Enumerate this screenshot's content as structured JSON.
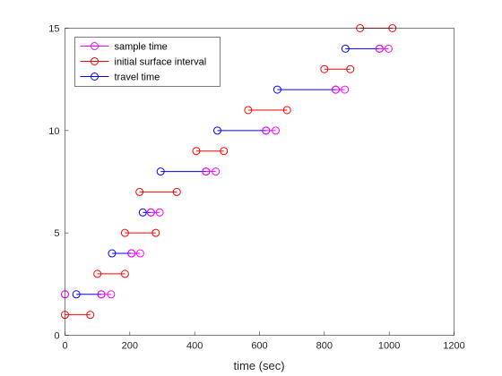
{
  "chart_data": {
    "type": "line",
    "title": "",
    "xlabel": "time (sec)",
    "ylabel": "",
    "xlim": [
      0,
      1200
    ],
    "ylim": [
      0,
      15
    ],
    "xticks": [
      0,
      200,
      400,
      600,
      800,
      1000,
      1200
    ],
    "yticks": [
      0,
      5,
      10,
      15
    ],
    "grid": false,
    "legend_position": "top-left",
    "colors": {
      "sample time": "#ff00ff",
      "initial surface interval": "#ff0000",
      "travel time": "#0000ff"
    },
    "legend": [
      "sample time",
      "initial surface interval",
      "travel time"
    ],
    "series": [
      {
        "name": "initial surface interval",
        "color": "#ff0000",
        "segments": [
          {
            "y": 1,
            "x": [
              0,
              78
            ]
          },
          {
            "y": 3,
            "x": [
              100,
              185
            ]
          },
          {
            "y": 5,
            "x": [
              185,
              280
            ]
          },
          {
            "y": 7,
            "x": [
              230,
              345
            ]
          },
          {
            "y": 9,
            "x": [
              405,
              490
            ]
          },
          {
            "y": 11,
            "x": [
              565,
              685
            ]
          },
          {
            "y": 13,
            "x": [
              800,
              880
            ]
          },
          {
            "y": 15,
            "x": [
              910,
              1010
            ]
          }
        ]
      },
      {
        "name": "travel time",
        "color": "#0000ff",
        "segments": [
          {
            "y": 2,
            "x": [
              35,
              112
            ]
          },
          {
            "y": 4,
            "x": [
              145,
              205
            ]
          },
          {
            "y": 6,
            "x": [
              240,
              265
            ]
          },
          {
            "y": 8,
            "x": [
              295,
              435
            ]
          },
          {
            "y": 10,
            "x": [
              470,
              620
            ]
          },
          {
            "y": 12,
            "x": [
              655,
              835
            ]
          },
          {
            "y": 14,
            "x": [
              865,
              970
            ]
          }
        ]
      },
      {
        "name": "sample time",
        "color": "#ff00ff",
        "segments": [
          {
            "y": 2,
            "x": [
              0,
              0
            ]
          },
          {
            "y": 2,
            "x": [
              112,
              142
            ]
          },
          {
            "y": 4,
            "x": [
              205,
              232
            ]
          },
          {
            "y": 6,
            "x": [
              265,
              292
            ]
          },
          {
            "y": 8,
            "x": [
              435,
              465
            ]
          },
          {
            "y": 10,
            "x": [
              620,
              650
            ]
          },
          {
            "y": 12,
            "x": [
              835,
              863
            ]
          },
          {
            "y": 14,
            "x": [
              970,
              998
            ]
          }
        ]
      }
    ]
  }
}
